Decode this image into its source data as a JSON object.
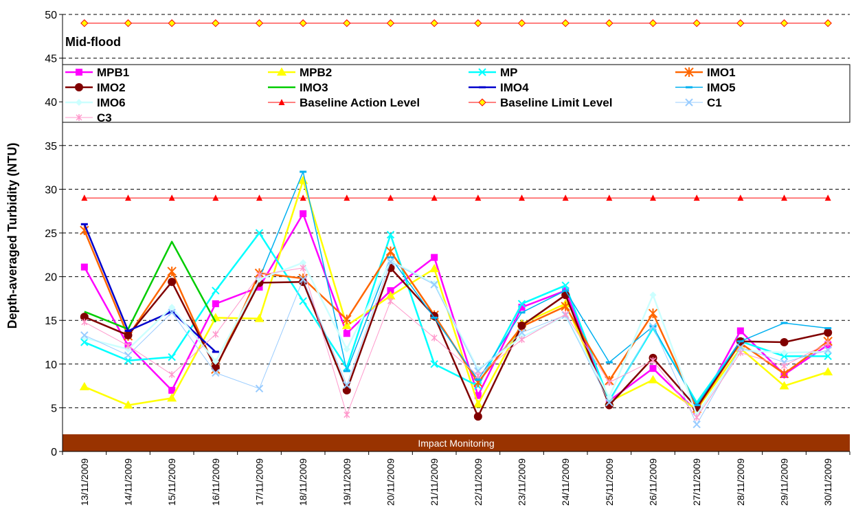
{
  "chart_data": {
    "type": "line",
    "title": "",
    "subtitle": "Mid-flood",
    "xlabel": "",
    "ylabel": "Depth-averaged Turbidity (NTU)",
    "ylim": [
      0,
      50
    ],
    "y_ticks": [
      0,
      5,
      10,
      15,
      20,
      25,
      30,
      35,
      40,
      45,
      50
    ],
    "grid": "horizontal dashed",
    "legend_position": "top",
    "band_label": "Impact Monitoring",
    "band_color": "#993300",
    "categories": [
      "13/11/2009",
      "14/11/2009",
      "15/11/2009",
      "16/11/2009",
      "17/11/2009",
      "18/11/2009",
      "19/11/2009",
      "20/11/2009",
      "21/11/2009",
      "22/11/2009",
      "23/11/2009",
      "24/11/2009",
      "25/11/2009",
      "26/11/2009",
      "27/11/2009",
      "28/11/2009",
      "29/11/2009",
      "30/11/2009"
    ],
    "series": [
      {
        "name": "MPB1",
        "color": "#ff00ff",
        "marker": "square",
        "width": 2.5,
        "values": [
          21.1,
          12.1,
          7.0,
          16.9,
          18.8,
          27.2,
          13.5,
          18.4,
          22.2,
          6.4,
          16.5,
          18.4,
          5.8,
          9.5,
          4.6,
          13.8,
          8.8,
          12.2
        ]
      },
      {
        "name": "MPB2",
        "color": "#ffff00",
        "marker": "triangle",
        "width": 2.5,
        "values": [
          7.4,
          5.3,
          6.1,
          15.3,
          15.2,
          31.0,
          14.4,
          17.8,
          20.9,
          5.4,
          14.6,
          16.9,
          5.7,
          8.2,
          4.8,
          11.8,
          7.5,
          9.1
        ]
      },
      {
        "name": "MP",
        "color": "#00ffff",
        "marker": "x",
        "width": 2.5,
        "values": [
          12.5,
          10.4,
          10.8,
          18.4,
          25.0,
          17.2,
          9.6,
          24.8,
          10.0,
          7.5,
          16.9,
          19.0,
          5.8,
          14.1,
          5.6,
          12.6,
          10.9,
          10.9
        ]
      },
      {
        "name": "IMO1",
        "color": "#ff6600",
        "marker": "star",
        "width": 2.5,
        "values": [
          25.3,
          13.2,
          20.6,
          9.4,
          20.4,
          19.8,
          15.1,
          22.9,
          15.6,
          7.9,
          14.3,
          16.6,
          8.1,
          15.8,
          4.9,
          12.4,
          8.9,
          12.6
        ]
      },
      {
        "name": "IMO2",
        "color": "#800000",
        "marker": "circle",
        "width": 2.5,
        "values": [
          15.4,
          13.3,
          19.4,
          9.6,
          19.3,
          19.4,
          7.0,
          21.0,
          15.5,
          4.0,
          14.4,
          17.9,
          5.3,
          10.7,
          5.0,
          12.6,
          12.5,
          13.6
        ]
      },
      {
        "name": "IMO3",
        "color": "#00cc00",
        "marker": "none",
        "width": 2.5,
        "values": [
          16.0,
          14.0,
          24.0,
          14.8,
          null,
          null,
          null,
          null,
          null,
          null,
          null,
          null,
          null,
          null,
          null,
          null,
          null,
          null
        ]
      },
      {
        "name": "IMO4",
        "color": "#0000cc",
        "marker": "dash",
        "width": 2.5,
        "values": [
          26.0,
          13.8,
          16.0,
          11.4,
          null,
          null,
          null,
          null,
          null,
          null,
          null,
          null,
          null,
          null,
          null,
          null,
          null,
          null
        ]
      },
      {
        "name": "IMO5",
        "color": "#00b0f0",
        "marker": "dash",
        "width": 1.5,
        "values": [
          null,
          null,
          null,
          null,
          19.8,
          32.0,
          9.2,
          22.2,
          15.3,
          8.2,
          15.9,
          18.4,
          10.2,
          14.3,
          5.3,
          12.6,
          14.7,
          14.1
        ]
      },
      {
        "name": "IMO6",
        "color": "#ccffff",
        "marker": "diamond",
        "width": 2.5,
        "values": [
          13.0,
          11.7,
          16.5,
          10.3,
          19.7,
          21.6,
          11.7,
          21.8,
          19.2,
          9.4,
          13.1,
          15.5,
          6.2,
          17.9,
          4.2,
          11.6,
          11.3,
          11.4
        ]
      },
      {
        "name": "Baseline Action Level",
        "color": "#ff0000",
        "marker": "triangle-small",
        "width": 1,
        "values": [
          29,
          29,
          29,
          29,
          29,
          29,
          29,
          29,
          29,
          29,
          29,
          29,
          29,
          29,
          29,
          29,
          29,
          29
        ]
      },
      {
        "name": "Baseline Limit Level",
        "color": "#ff0000",
        "marker": "diamond-yellow",
        "width": 1,
        "values": [
          49,
          49,
          49,
          49,
          49,
          49,
          49,
          49,
          49,
          49,
          49,
          49,
          49,
          49,
          49,
          49,
          49,
          49
        ]
      },
      {
        "name": "C1",
        "color": "#99ccff",
        "marker": "x",
        "width": 1,
        "values": [
          13.3,
          11.0,
          15.9,
          9.0,
          7.2,
          19.7,
          7.6,
          21.7,
          19.1,
          9.2,
          13.6,
          15.6,
          5.6,
          14.3,
          3.1,
          11.9,
          10.2,
          11.6
        ]
      },
      {
        "name": "C3",
        "color": "#ff99cc",
        "marker": "asterisk",
        "width": 1,
        "values": [
          14.8,
          12.1,
          8.8,
          13.4,
          20.2,
          21.0,
          4.2,
          17.2,
          13.0,
          8.7,
          12.8,
          15.7,
          7.9,
          10.4,
          3.9,
          11.3,
          9.8,
          12.4
        ]
      }
    ]
  }
}
